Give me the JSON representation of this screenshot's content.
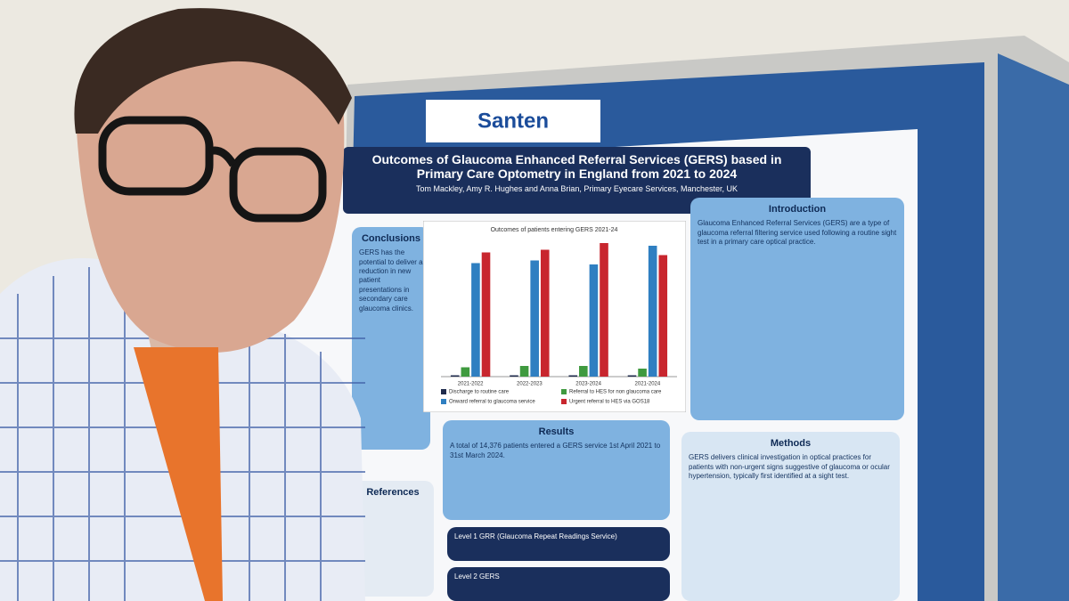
{
  "logo": "Santen",
  "poster": {
    "title": "Outcomes of Glaucoma Enhanced Referral Services (GERS) based in Primary Care Optometry in England from 2021 to 2024",
    "authors": "Tom Mackley, Amy R. Hughes and Anna Brian, Primary Eyecare Services, Manchester, UK",
    "introduction": {
      "heading": "Introduction",
      "text": "Glaucoma Enhanced Referral Services (GERS) are a type of glaucoma referral filtering service used following a routine sight test in a primary care optical practice."
    },
    "methods": {
      "heading": "Methods",
      "text": "GERS delivers clinical investigation in optical practices for patients with non-urgent signs suggestive of glaucoma or ocular hypertension, typically first identified at a sight test."
    },
    "results": {
      "heading": "Results",
      "text": "A total of 14,376 patients entered a GERS service 1st April 2021 to 31st March 2024."
    },
    "conclusions": {
      "heading": "Conclusions",
      "text": "GERS has the potential to deliver a reduction in new patient presentations in secondary care glaucoma clinics."
    },
    "references": {
      "heading": "References"
    },
    "levels": [
      "Level 1 GRR (Glaucoma Repeat Readings Service)",
      "Level 2 GERS"
    ]
  },
  "chart_data": {
    "type": "bar",
    "title": "Outcomes of patients entering GERS 2021-24",
    "categories": [
      "2021-2022",
      "2022-2023",
      "2023-2024",
      "2021-2024"
    ],
    "ylim": [
      0,
      100
    ],
    "series": [
      {
        "name": "Discharge to routine care",
        "color": "#1f2b4d",
        "values": [
          1,
          1,
          1,
          1
        ]
      },
      {
        "name": "Referral to HES for non glaucoma care",
        "color": "#3f9a3f",
        "values": [
          7,
          8,
          8,
          6
        ]
      },
      {
        "name": "Onward referral to glaucoma service",
        "color": "#2f7fc1",
        "values": [
          85,
          87,
          84,
          98
        ]
      },
      {
        "name": "Urgent referral to HES via GOS18",
        "color": "#c8262e",
        "values": [
          93,
          95,
          100,
          91
        ]
      }
    ]
  }
}
